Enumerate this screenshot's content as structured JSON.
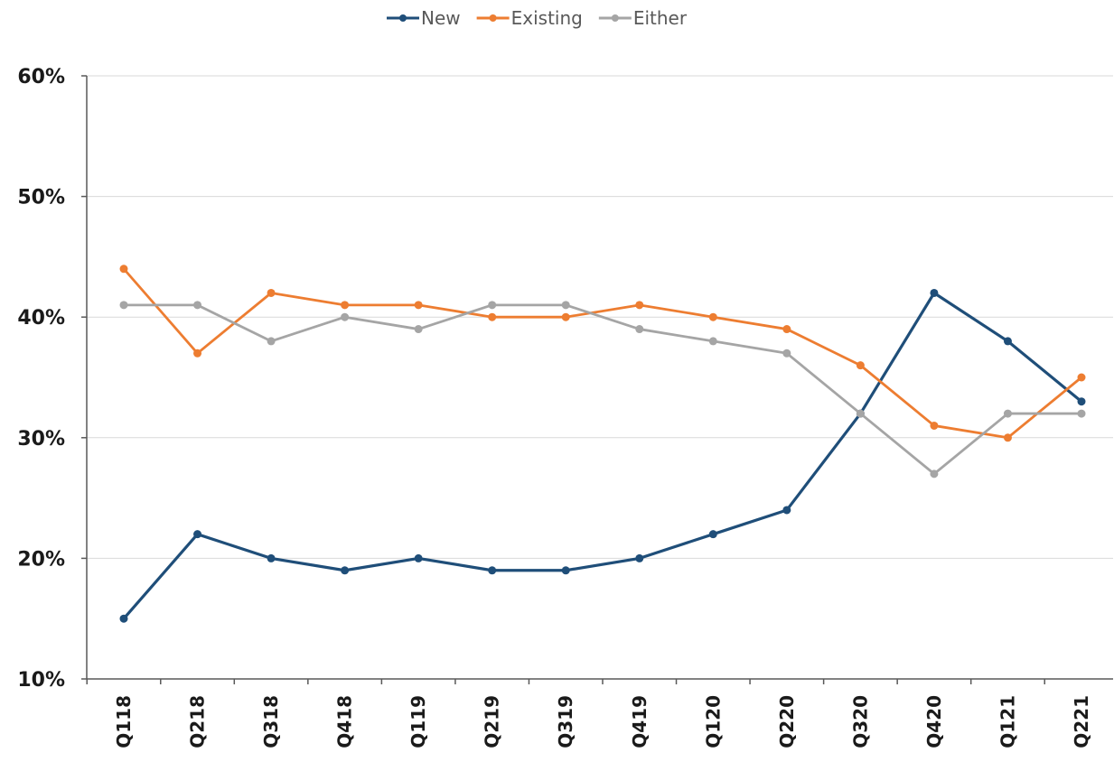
{
  "chart_data": {
    "type": "line",
    "categories": [
      "Q118",
      "Q218",
      "Q318",
      "Q418",
      "Q119",
      "Q219",
      "Q319",
      "Q419",
      "Q120",
      "Q220",
      "Q320",
      "Q420",
      "Q121",
      "Q221"
    ],
    "series": [
      {
        "name": "New",
        "color": "#1f4e79",
        "values": [
          15,
          22,
          20,
          19,
          20,
          19,
          19,
          20,
          22,
          24,
          32,
          42,
          38,
          33
        ]
      },
      {
        "name": "Existing",
        "color": "#ed7d31",
        "values": [
          44,
          37,
          42,
          41,
          41,
          40,
          40,
          41,
          40,
          39,
          36,
          31,
          30,
          35
        ]
      },
      {
        "name": "Either",
        "color": "#a5a5a5",
        "values": [
          41,
          41,
          38,
          40,
          39,
          41,
          41,
          39,
          38,
          37,
          32,
          27,
          32,
          32
        ]
      }
    ],
    "yticks": [
      "10%",
      "20%",
      "30%",
      "40%",
      "50%",
      "60%"
    ],
    "ytick_values": [
      10,
      20,
      30,
      40,
      50,
      60
    ],
    "ylim": [
      10,
      60
    ],
    "title": "",
    "xlabel": "",
    "ylabel": "",
    "grid": true,
    "legend": "top-center"
  }
}
